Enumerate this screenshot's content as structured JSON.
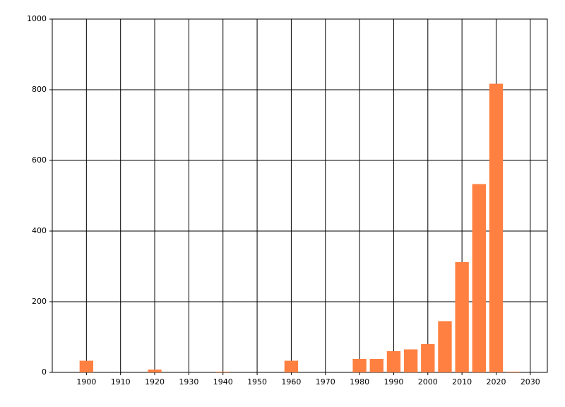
{
  "chart_data": {
    "type": "bar",
    "x": [
      1900,
      1920,
      1940,
      1960,
      1980,
      1985,
      1990,
      1995,
      2000,
      2005,
      2010,
      2015,
      2020,
      2025
    ],
    "values": [
      33,
      8,
      2,
      33,
      38,
      38,
      60,
      65,
      80,
      145,
      312,
      533,
      817,
      2
    ],
    "color": "#ff8040",
    "xlim": [
      1890,
      2035
    ],
    "xticks": [
      1900,
      1910,
      1920,
      1930,
      1940,
      1950,
      1960,
      1970,
      1980,
      1990,
      2000,
      2010,
      2020,
      2030
    ],
    "ylim": [
      0,
      1000
    ],
    "yticks": [
      0,
      200,
      400,
      600,
      800,
      1000
    ],
    "grid": true
  }
}
